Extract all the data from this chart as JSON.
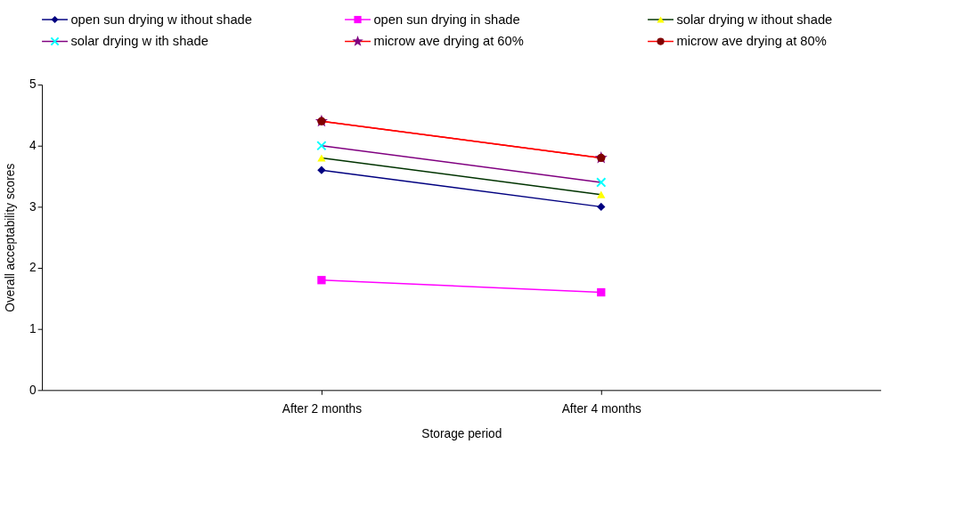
{
  "chart_data": {
    "type": "line",
    "xlabel": "Storage period",
    "ylabel": "Overall acceptability scores",
    "categories": [
      "After 2 months",
      "After 4 months"
    ],
    "ylim": [
      0,
      5
    ],
    "yticks": [
      0,
      1,
      2,
      3,
      4,
      5
    ],
    "grid": false,
    "legend": "top",
    "series": [
      {
        "name": "open sun drying w ithout shade",
        "color": "#000080",
        "colors": [
          "#000080",
          "#000080"
        ],
        "marker": "diamond",
        "values": [
          3.6,
          3.0
        ]
      },
      {
        "name": "open sun drying in shade",
        "color": "#ff00ff",
        "colors": [
          "#ff00ff",
          "#ff00ff"
        ],
        "marker": "square",
        "values": [
          1.8,
          1.6
        ]
      },
      {
        "name": "solar drying w ithout shade",
        "color": "#003300",
        "colors": [
          "#ffff00",
          "#ffff00"
        ],
        "marker": "triangle",
        "values": [
          3.8,
          3.2
        ]
      },
      {
        "name": "solar drying w ith shade",
        "color": "#800080",
        "colors": [
          "#00ffff",
          "#00ffff"
        ],
        "marker": "cross",
        "values": [
          4.0,
          3.4
        ]
      },
      {
        "name": "microw ave drying at 60%",
        "color": "#ff0000",
        "colors": [
          "#800080",
          "#800080"
        ],
        "marker": "star",
        "values": [
          4.4,
          3.8
        ]
      },
      {
        "name": "microw ave drying at 80%",
        "color": "#ff0000",
        "colors": [
          "#800000",
          "#800000"
        ],
        "marker": "circle",
        "values": [
          4.4,
          3.8
        ]
      }
    ]
  }
}
